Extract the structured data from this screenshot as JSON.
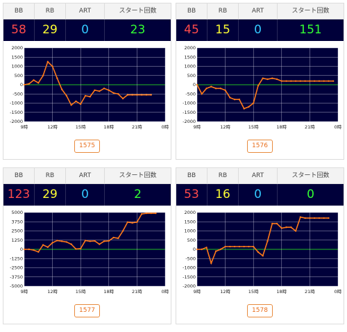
{
  "colors": {
    "bb": "#ff4a4a",
    "rb": "#ffff33",
    "art": "#33c8ff",
    "start": "#33ff33",
    "line": "#ff7a1a",
    "zero": "#22bb22",
    "plot_bg": "#00003a",
    "grid": "#cfcfdf"
  },
  "headers": {
    "bb": "BB",
    "rb": "RB",
    "art": "ART",
    "start": "スタート回数"
  },
  "panels": [
    {
      "bb": "58",
      "rb": "29",
      "art": "0",
      "start": "23",
      "button_label": "1575",
      "chart_data": {
        "type": "line",
        "x_ticks": [
          "9時",
          "12時",
          "15時",
          "18時",
          "21時",
          "0時"
        ],
        "y_ticks": [
          "2000",
          "1500",
          "1000",
          "500",
          "0",
          "-500",
          "-1000",
          "-1500",
          "-2000"
        ],
        "ylim": [
          -2000,
          2000
        ],
        "x": [
          0,
          0.5,
          1,
          1.5,
          2,
          2.5,
          3,
          3.5,
          4,
          4.5,
          5,
          5.5,
          6,
          6.5,
          7,
          7.5,
          8,
          8.5,
          9,
          9.5,
          10,
          10.5,
          11,
          11.5,
          12,
          12.5,
          13,
          13.5
        ],
        "values": [
          0,
          50,
          250,
          100,
          500,
          1250,
          1000,
          350,
          -250,
          -600,
          -1100,
          -900,
          -1050,
          -600,
          -650,
          -300,
          -350,
          -200,
          -300,
          -450,
          -500,
          -750,
          -550,
          -550,
          -550,
          -550,
          -550,
          -550
        ]
      }
    },
    {
      "bb": "45",
      "rb": "15",
      "art": "0",
      "start": "151",
      "button_label": "1576",
      "chart_data": {
        "type": "line",
        "x_ticks": [
          "9時",
          "12時",
          "15時",
          "18時",
          "21時",
          "0時"
        ],
        "y_ticks": [
          "2000",
          "1500",
          "1000",
          "500",
          "0",
          "-500",
          "-1000",
          "-1500",
          "-2000"
        ],
        "ylim": [
          -2000,
          2000
        ],
        "x": [
          0,
          0.5,
          1,
          1.5,
          2,
          2.5,
          3,
          3.5,
          4,
          4.5,
          5,
          5.5,
          6,
          6.5,
          7,
          7.5,
          8,
          8.5,
          9,
          9.5,
          10,
          10.5,
          11,
          11.5,
          12,
          12.5,
          13,
          13.5,
          14,
          14.5
        ],
        "values": [
          0,
          -500,
          -200,
          -100,
          -200,
          -200,
          -300,
          -700,
          -800,
          -800,
          -1300,
          -1200,
          -1000,
          -50,
          350,
          300,
          350,
          300,
          200,
          200,
          200,
          200,
          200,
          200,
          200,
          200,
          200,
          200,
          200,
          200
        ]
      }
    },
    {
      "bb": "123",
      "rb": "29",
      "art": "0",
      "start": "2",
      "button_label": "1577",
      "chart_data": {
        "type": "line",
        "x_ticks": [
          "9時",
          "12時",
          "15時",
          "18時",
          "21時",
          "0時"
        ],
        "y_ticks": [
          "5000",
          "3750",
          "2500",
          "1250",
          "0",
          "-1250",
          "-2500",
          "-3750",
          "-5000"
        ],
        "ylim": [
          -5000,
          5000
        ],
        "x": [
          0,
          0.5,
          1,
          1.5,
          2,
          2.5,
          3,
          3.5,
          4,
          4.5,
          5,
          5.5,
          6,
          6.5,
          7,
          7.5,
          8,
          8.5,
          9,
          9.5,
          10,
          10.5,
          11,
          11.5,
          12,
          12.5,
          13,
          13.5,
          14
        ],
        "values": [
          0,
          0,
          -100,
          -350,
          600,
          300,
          900,
          1200,
          1100,
          1000,
          700,
          50,
          100,
          1200,
          1100,
          1150,
          700,
          1100,
          1150,
          1600,
          1500,
          2500,
          3700,
          3600,
          3700,
          4800,
          4900,
          4900,
          4900
        ]
      }
    },
    {
      "bb": "53",
      "rb": "16",
      "art": "0",
      "start": "0",
      "button_label": "1578",
      "chart_data": {
        "type": "line",
        "x_ticks": [
          "9時",
          "12時",
          "15時",
          "18時",
          "21時",
          "0時"
        ],
        "y_ticks": [
          "2000",
          "1500",
          "1000",
          "500",
          "0",
          "-500",
          "-1000",
          "-1500",
          "-2000"
        ],
        "ylim": [
          -2000,
          2000
        ],
        "x": [
          0,
          0.5,
          1,
          1.5,
          2,
          2.5,
          3,
          3.5,
          4,
          4.5,
          5,
          5.5,
          6,
          6.5,
          7,
          7.5,
          8,
          8.5,
          9,
          9.5,
          10,
          10.5,
          11,
          11.5,
          12,
          12.5,
          13,
          13.5,
          14
        ],
        "values": [
          0,
          0,
          100,
          -750,
          -100,
          0,
          150,
          150,
          150,
          150,
          150,
          150,
          150,
          -150,
          -350,
          450,
          1400,
          1400,
          1150,
          1200,
          1200,
          1000,
          1750,
          1700,
          1700,
          1700,
          1700,
          1700,
          1700
        ]
      }
    }
  ]
}
